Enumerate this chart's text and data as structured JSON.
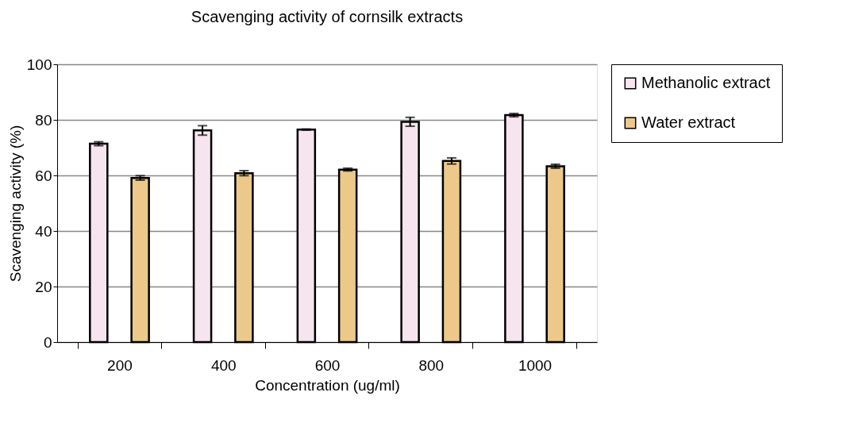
{
  "chart_data": {
    "type": "bar",
    "title": "Scavenging activity of cornsilk extracts",
    "xlabel": "Concentration (ug/ml)",
    "ylabel": "Scavenging activity (%)",
    "categories": [
      "200",
      "400",
      "600",
      "800",
      "1000"
    ],
    "series": [
      {
        "name": "Methanolic extract",
        "color": "#f6e4ee",
        "values": [
          71.4,
          76.2,
          76.5,
          79.3,
          81.7
        ],
        "errors": [
          0.7,
          1.7,
          0.2,
          1.6,
          0.6
        ]
      },
      {
        "name": "Water extract",
        "color": "#ecc98a",
        "values": [
          59.1,
          60.8,
          62.1,
          65.2,
          63.3
        ],
        "errors": [
          0.8,
          0.9,
          0.5,
          1.1,
          0.7
        ]
      }
    ],
    "ylim": [
      0,
      100
    ],
    "yticks": [
      0,
      20,
      40,
      60,
      80,
      100
    ],
    "grid": "y",
    "legend": "right"
  }
}
